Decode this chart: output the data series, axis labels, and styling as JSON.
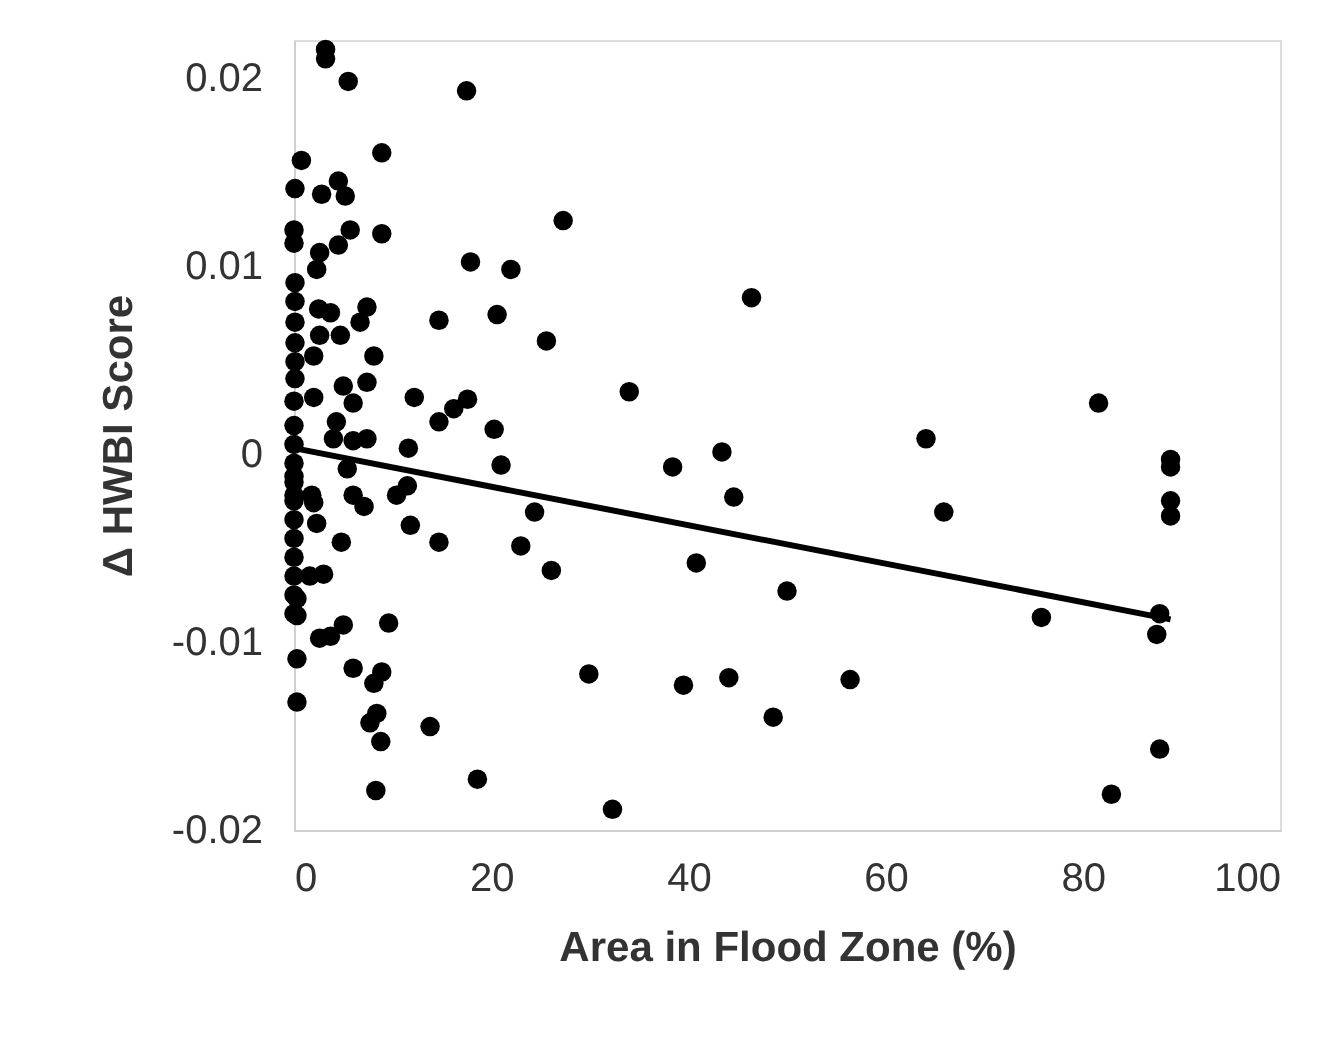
{
  "chart_data": {
    "type": "scatter",
    "xlabel": "Area in Flood Zone (%)",
    "ylabel": "Δ HWBI Score",
    "xlim": [
      0,
      100
    ],
    "xticks": [
      0,
      20,
      40,
      60,
      80,
      100
    ],
    "ylim": [
      -0.02,
      0.022
    ],
    "yticks": [
      -0.02,
      -0.01,
      0,
      0.01,
      0.02
    ],
    "grid": false,
    "marker": "circle",
    "series": [
      {
        "color": "#000000",
        "x": [
          3.2,
          3.2,
          5.5,
          17.5,
          8.9,
          0.75,
          0.1,
          2.8,
          4.5,
          5.2,
          27.3,
          0,
          0,
          5.7,
          8.9,
          4.5,
          2.6,
          2.3,
          17.9,
          22.0,
          0.1,
          0.1,
          0.1,
          0.1,
          0.1,
          0.1,
          2.5,
          3.7,
          7.4,
          6.7,
          4.7,
          2.6,
          14.7,
          20.6,
          25.6,
          8.1,
          2.0,
          5.0,
          7.4,
          6.0,
          2.0,
          12.2,
          17.6,
          16.2,
          14.7,
          20.3,
          21.0,
          11.6,
          4.3,
          4.0,
          6.0,
          7.4,
          5.4,
          0,
          0,
          0,
          0,
          0,
          0,
          1.8,
          6.0,
          7.1,
          10.4,
          24.4,
          11.5,
          2.0,
          2.3,
          11.8,
          4.8,
          14.7,
          23.0,
          26.1,
          3.0,
          1.6,
          0,
          0,
          0,
          0,
          0,
          0,
          0,
          0,
          0.3,
          0.3,
          9.6,
          5.0,
          3.7,
          2.6,
          0.3,
          6.0,
          8.9,
          8.1,
          0.3,
          8.4,
          7.7,
          8.8,
          13.8,
          18.6,
          8.3,
          46.4,
          34.0,
          81.6,
          64.1,
          38.4,
          43.4,
          44.6,
          88.9,
          88.9,
          88.9,
          88.9,
          65.9,
          40.8,
          50.0,
          75.8,
          87.8,
          87.5,
          29.9,
          39.5,
          44.1,
          56.4,
          48.6,
          87.8,
          82.9,
          32.3
        ],
        "values": [
          0.0215,
          0.021,
          0.0198,
          0.0193,
          0.016,
          0.0156,
          0.0141,
          0.0138,
          0.0145,
          0.0137,
          0.0124,
          0.0119,
          0.0112,
          0.0119,
          0.0117,
          0.0111,
          0.0107,
          0.0098,
          0.0102,
          0.0098,
          0.0091,
          0.0081,
          0.007,
          0.0059,
          0.0049,
          0.004,
          0.0077,
          0.0075,
          0.0078,
          0.007,
          0.0063,
          0.0063,
          0.0071,
          0.0074,
          0.006,
          0.0052,
          0.0052,
          0.0036,
          0.0038,
          0.0027,
          0.003,
          0.003,
          0.0029,
          0.0024,
          0.0017,
          0.0013,
          -0.0006,
          0.0003,
          0.0017,
          0.0008,
          0.0007,
          0.0008,
          -0.0008,
          0.0028,
          0.0015,
          0.0005,
          -0.0005,
          -0.0015,
          -0.0025,
          -0.0022,
          -0.0022,
          -0.0028,
          -0.0022,
          -0.0031,
          -0.0017,
          -0.0026,
          -0.0037,
          -0.0038,
          -0.0047,
          -0.0047,
          -0.0049,
          -0.0062,
          -0.0064,
          -0.0065,
          -0.0012,
          -0.0035,
          -0.0045,
          -0.0055,
          -0.0065,
          -0.0075,
          -0.0085,
          -0.0022,
          -0.0077,
          -0.0086,
          -0.009,
          -0.0091,
          -0.0097,
          -0.0098,
          -0.0109,
          -0.0114,
          -0.0116,
          -0.0122,
          -0.0132,
          -0.0138,
          -0.0143,
          -0.0153,
          -0.0145,
          -0.0173,
          -0.0179,
          0.0083,
          0.0033,
          0.0027,
          0.0008,
          -0.0007,
          0.0001,
          -0.0023,
          -0.0003,
          -0.0007,
          -0.0025,
          -0.0033,
          -0.0031,
          -0.0058,
          -0.0073,
          -0.0087,
          -0.0085,
          -0.0096,
          -0.0117,
          -0.0123,
          -0.0119,
          -0.012,
          -0.014,
          -0.0157,
          -0.0181,
          -0.0189
        ]
      },
      {
        "type": "line",
        "color": "#000000",
        "line_style": "solid",
        "marker": "none",
        "x": [
          0,
          88.9
        ],
        "values": [
          0.0003,
          -0.0088
        ]
      }
    ]
  }
}
